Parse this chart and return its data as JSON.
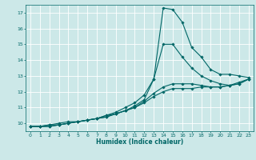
{
  "title": "",
  "xlabel": "Humidex (Indice chaleur)",
  "ylabel": "",
  "bg_color": "#cce8e8",
  "grid_color": "#ffffff",
  "line_color": "#006666",
  "xlim": [
    -0.5,
    23.5
  ],
  "ylim": [
    9.5,
    17.5
  ],
  "xticks": [
    0,
    1,
    2,
    3,
    4,
    5,
    6,
    7,
    8,
    9,
    10,
    11,
    12,
    13,
    14,
    15,
    16,
    17,
    18,
    19,
    20,
    21,
    22,
    23
  ],
  "yticks": [
    10,
    11,
    12,
    13,
    14,
    15,
    16,
    17
  ],
  "series": [
    {
      "x": [
        0,
        1,
        2,
        3,
        4,
        5,
        6,
        7,
        8,
        9,
        10,
        11,
        12,
        13,
        14,
        15,
        16,
        17,
        18,
        19,
        20,
        21,
        22,
        23
      ],
      "y": [
        9.8,
        9.8,
        9.9,
        9.9,
        10.0,
        10.1,
        10.2,
        10.3,
        10.5,
        10.7,
        11.0,
        11.3,
        11.8,
        12.8,
        17.3,
        17.2,
        16.4,
        14.8,
        14.2,
        13.4,
        13.1,
        13.1,
        13.0,
        12.9
      ]
    },
    {
      "x": [
        0,
        1,
        2,
        3,
        4,
        5,
        6,
        7,
        8,
        9,
        10,
        11,
        12,
        13,
        14,
        15,
        16,
        17,
        18,
        19,
        20,
        21,
        22,
        23
      ],
      "y": [
        9.8,
        9.8,
        9.9,
        10.0,
        10.1,
        10.1,
        10.2,
        10.3,
        10.5,
        10.6,
        10.8,
        11.1,
        11.5,
        12.8,
        15.0,
        15.0,
        14.2,
        13.5,
        13.0,
        12.7,
        12.5,
        12.4,
        12.5,
        12.8
      ]
    },
    {
      "x": [
        0,
        1,
        2,
        3,
        4,
        5,
        6,
        7,
        8,
        9,
        10,
        11,
        12,
        13,
        14,
        15,
        16,
        17,
        18,
        19,
        20,
        21,
        22,
        23
      ],
      "y": [
        9.8,
        9.8,
        9.8,
        9.9,
        10.0,
        10.1,
        10.2,
        10.3,
        10.4,
        10.6,
        10.8,
        11.0,
        11.4,
        11.9,
        12.3,
        12.5,
        12.5,
        12.5,
        12.4,
        12.3,
        12.3,
        12.4,
        12.6,
        12.8
      ]
    },
    {
      "x": [
        0,
        1,
        2,
        3,
        4,
        5,
        6,
        7,
        8,
        9,
        10,
        11,
        12,
        13,
        14,
        15,
        16,
        17,
        18,
        19,
        20,
        21,
        22,
        23
      ],
      "y": [
        9.8,
        9.8,
        9.8,
        9.9,
        10.0,
        10.1,
        10.2,
        10.3,
        10.4,
        10.6,
        10.8,
        11.0,
        11.3,
        11.7,
        12.0,
        12.2,
        12.2,
        12.2,
        12.3,
        12.3,
        12.3,
        12.4,
        12.5,
        12.8
      ]
    }
  ],
  "marker": "D",
  "marker_size": 1.8,
  "line_width": 0.8
}
